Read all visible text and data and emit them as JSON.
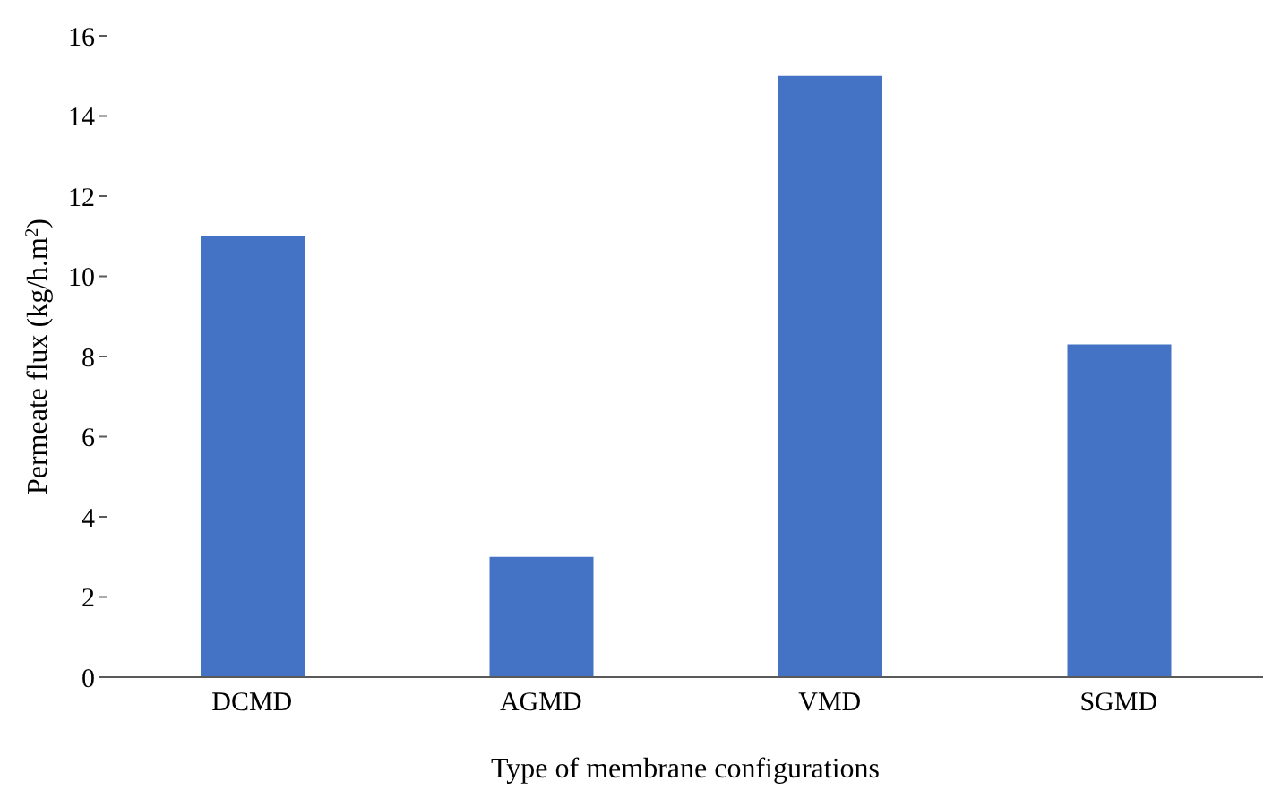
{
  "chart_data": {
    "type": "bar",
    "xlabel": "Type of membrane configurations",
    "ylabel": "Permeate flux (kg/h.m$^{2}$)",
    "categories": [
      "DCMD",
      "AGMD",
      "VMD",
      "SGMD"
    ],
    "values": [
      11,
      3,
      15,
      8.3
    ],
    "color": "#4472c4",
    "ylim": [
      0,
      16
    ],
    "yticks": [
      0,
      2,
      4,
      6,
      8,
      10,
      12,
      14,
      16
    ],
    "grid": false,
    "legend": false
  }
}
